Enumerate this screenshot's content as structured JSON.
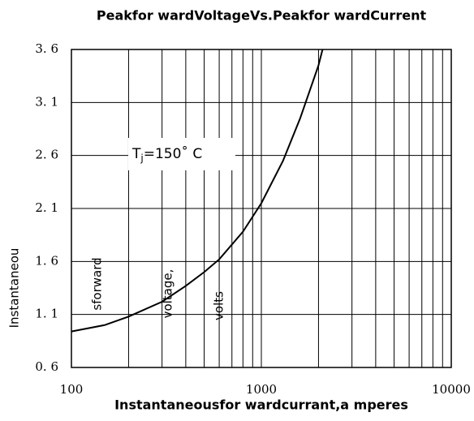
{
  "chart_data": {
    "type": "line",
    "title": "Peakfor wardVoltageVs.Peakfor   wardCurrent",
    "x_label": "Instantaneousfor wardcurrant,a mperes",
    "y_label_parts": [
      "Instantaneou",
      "sforward",
      "voltage,",
      "volts"
    ],
    "annotation_parts": [
      "T",
      "j",
      "=150˚ C"
    ],
    "log_x": true,
    "grid": true,
    "xlim": [
      100,
      10000
    ],
    "xticks": [
      100,
      1000,
      10000
    ],
    "xminorticks": [
      200,
      300,
      400,
      500,
      600,
      700,
      800,
      900,
      2000,
      3000,
      4000,
      5000,
      6000,
      7000,
      8000,
      9000
    ],
    "ylim": [
      0.6,
      3.6
    ],
    "yticks": [
      {
        "value": 0.6,
        "label": "0. 6"
      },
      {
        "value": 1.1,
        "label": "1. 1"
      },
      {
        "value": 1.6,
        "label": "1. 6"
      },
      {
        "value": 2.1,
        "label": "2. 1"
      },
      {
        "value": 2.6,
        "label": "2. 6"
      },
      {
        "value": 3.1,
        "label": "3. 1"
      },
      {
        "value": 3.6,
        "label": "3. 6"
      }
    ],
    "x": [
      100,
      150,
      200,
      300,
      400,
      500,
      600,
      800,
      1000,
      1300,
      1600,
      2000,
      2100
    ],
    "series": [
      {
        "color": "#000000",
        "values": [
          0.94,
          1.0,
          1.08,
          1.22,
          1.37,
          1.5,
          1.62,
          1.88,
          2.15,
          2.55,
          2.95,
          3.45,
          3.6
        ]
      }
    ]
  }
}
